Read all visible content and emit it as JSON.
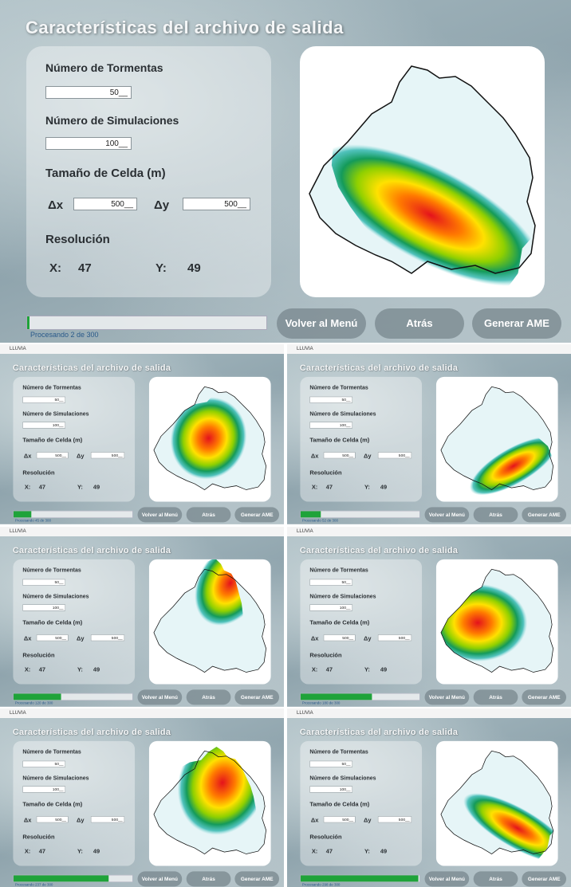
{
  "main": {
    "title": "Características del archivo de salida",
    "storms_label": "Número de Tormentas",
    "storms_value": "50__",
    "simulations_label": "Número de Simulaciones",
    "simulations_value": "100__",
    "cell_label": "Tamaño de Celda (m)",
    "dx_label": "Δx",
    "dx_value": "500__",
    "dy_label": "Δy",
    "dy_value": "500__",
    "resolution_label": "Resolución",
    "x_label": "X:",
    "x_value": 47,
    "y_label": "Y:",
    "y_value": 49,
    "buttons": [
      "Volver al Menú",
      "Atrás",
      "Generar AME"
    ],
    "status": "Procesando 2 de 300"
  },
  "panels": [
    {
      "window_title": "LLUVIA",
      "title": "Características del archivo de salida",
      "storms_label": "Número de Tormentas",
      "storms_value": "50__",
      "simulations_label": "Número de Simulaciones",
      "simulations_value": "100__",
      "cell_label": "Tamaño de Celda (m)",
      "dx_label": "Δx",
      "dx_value": "500__",
      "dy_label": "Δy",
      "dy_value": "500__",
      "resolution_label": "Resolución",
      "x_label": "X:",
      "x_value": 47,
      "y_label": "Y:",
      "y_value": 49,
      "buttons": [
        "Volver al Menú",
        "Atrás",
        "Generar AME"
      ],
      "status": "Procesando 45 de 300"
    },
    {
      "window_title": "LLUVIA",
      "title": "Características del archivo de salida",
      "storms_label": "Número de Tormentas",
      "storms_value": "50__",
      "simulations_label": "Número de Simulaciones",
      "simulations_value": "100__",
      "cell_label": "Tamaño de Celda (m)",
      "dx_label": "Δx",
      "dx_value": "500__",
      "dy_label": "Δy",
      "dy_value": "500__",
      "resolution_label": "Resolución",
      "x_label": "X:",
      "x_value": 47,
      "y_label": "Y:",
      "y_value": 49,
      "buttons": [
        "Volver al Menú",
        "Atrás",
        "Generar AME"
      ],
      "status": "Procesando 52 de 300"
    },
    {
      "window_title": "LLUVIA",
      "title": "Características del archivo de salida",
      "storms_label": "Número de Tormentas",
      "storms_value": "50__",
      "simulations_label": "Número de Simulaciones",
      "simulations_value": "100__",
      "cell_label": "Tamaño de Celda (m)",
      "dx_label": "Δx",
      "dx_value": "500__",
      "dy_label": "Δy",
      "dy_value": "500__",
      "resolution_label": "Resolución",
      "x_label": "X:",
      "x_value": 47,
      "y_label": "Y:",
      "y_value": 49,
      "buttons": [
        "Volver al Menú",
        "Atrás",
        "Generar AME"
      ],
      "status": "Procesando 120 de 300"
    },
    {
      "window_title": "LLUVIA",
      "title": "Características del archivo de salida",
      "storms_label": "Número de Tormentas",
      "storms_value": "50__",
      "simulations_label": "Número de Simulaciones",
      "simulations_value": "100__",
      "cell_label": "Tamaño de Celda (m)",
      "dx_label": "Δx",
      "dx_value": "500__",
      "dy_label": "Δy",
      "dy_value": "500__",
      "resolution_label": "Resolución",
      "x_label": "X:",
      "x_value": 47,
      "y_label": "Y:",
      "y_value": 49,
      "buttons": [
        "Volver al Menú",
        "Atrás",
        "Generar AME"
      ],
      "status": "Procesando 180 de 300"
    },
    {
      "window_title": "LLUVIA",
      "title": "Características del archivo de salida",
      "storms_label": "Número de Tormentas",
      "storms_value": "50__",
      "simulations_label": "Número de Simulaciones",
      "simulations_value": "100__",
      "cell_label": "Tamaño de Celda (m)",
      "dx_label": "Δx",
      "dx_value": "500__",
      "dy_label": "Δy",
      "dy_value": "500__",
      "resolution_label": "Resolución",
      "x_label": "X:",
      "x_value": 47,
      "y_label": "Y:",
      "y_value": 49,
      "buttons": [
        "Volver al Menú",
        "Atrás",
        "Generar AME"
      ],
      "status": "Procesando 237 de 300"
    },
    {
      "window_title": "LLUVIA",
      "title": "Características del archivo de salida",
      "storms_label": "Número de Tormentas",
      "storms_value": "50__",
      "simulations_label": "Número de Simulaciones",
      "simulations_value": "100__",
      "cell_label": "Tamaño de Celda (m)",
      "dx_label": "Δx",
      "dx_value": "500__",
      "dy_label": "Δy",
      "dy_value": "500__",
      "resolution_label": "Resolución",
      "x_label": "X:",
      "x_value": 47,
      "y_label": "Y:",
      "y_value": 49,
      "buttons": [
        "Volver al Menú",
        "Atrás",
        "Generar AME"
      ],
      "status": "Procesando 298 de 300"
    }
  ]
}
